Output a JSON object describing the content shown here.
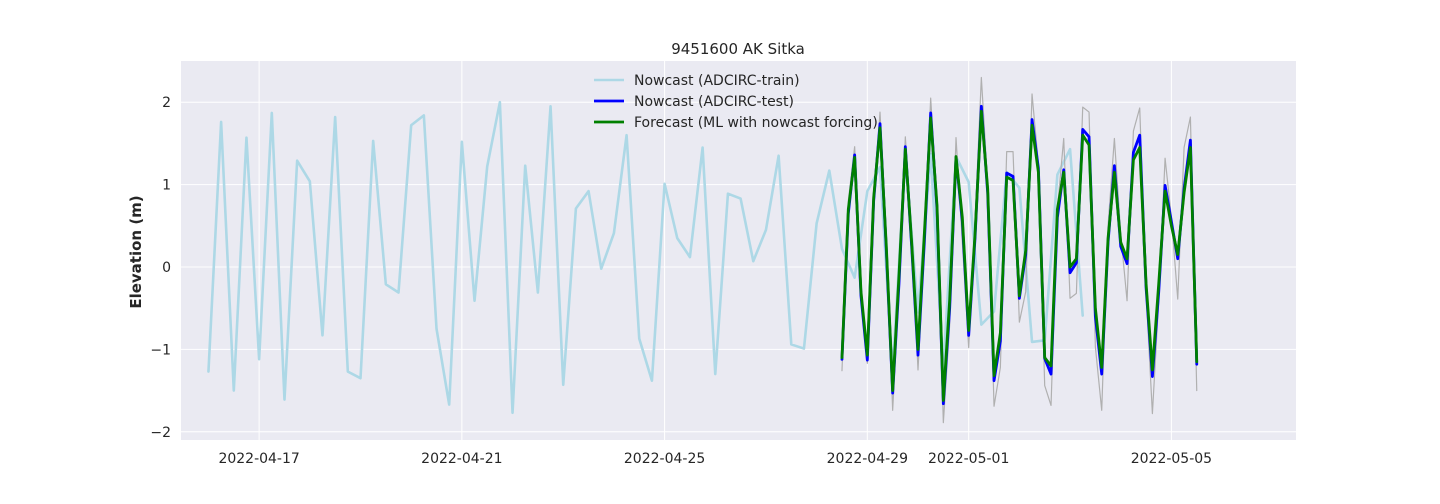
{
  "chart_data": {
    "type": "line",
    "title": "9451600 AK Sitka",
    "xlabel": "",
    "ylabel": "Elevation (m)",
    "x_type": "date",
    "xlim": [
      "2022-04-15T11:00",
      "2022-05-07T11:00"
    ],
    "ylim": [
      -2.1,
      2.5
    ],
    "x_ticks": [
      "2022-04-17",
      "2022-04-21",
      "2022-04-25",
      "2022-04-29",
      "2022-05-01",
      "2022-05-05"
    ],
    "y_ticks": [
      -2,
      -1,
      0,
      1,
      2
    ],
    "y_tick_labels": [
      "−2",
      "−1",
      "0",
      "1",
      "2"
    ],
    "grid": true,
    "legend_position": "top-center",
    "background": "#eaeaf2",
    "series": [
      {
        "name": "Nowcast (ADCIRC-train)",
        "color": "#add8e6",
        "start": "2022-04-16T00:00",
        "step_hours": 6,
        "values": [
          -1.27,
          1.76,
          -1.5,
          1.57,
          -1.12,
          1.87,
          -1.61,
          1.29,
          1.04,
          -0.83,
          1.82,
          -1.27,
          -1.35,
          1.53,
          -0.21,
          -0.31,
          1.72,
          1.84,
          -0.75,
          -1.67,
          1.52,
          -0.41,
          1.22,
          2.0,
          -1.77,
          1.23,
          -0.31,
          1.95,
          -1.43,
          0.71,
          0.92,
          -0.02,
          0.41,
          1.6,
          -0.87,
          -1.38,
          1.01,
          0.35,
          0.12,
          1.45,
          -1.3,
          0.89,
          0.83,
          0.07,
          0.45,
          1.35,
          -0.94,
          -0.99,
          0.53,
          1.17,
          0.22,
          -0.13,
          0.92,
          1.21,
          -1.27,
          1.35,
          -0.55,
          1.37,
          -1.22,
          1.34,
          1.03,
          -0.7,
          -0.54,
          1.15,
          0.96,
          -0.91,
          -0.89,
          1.12,
          1.43,
          -0.59
        ]
      },
      {
        "name": "",
        "color": "#b0b0b0",
        "start": "2022-04-28T12:00",
        "step_hours": 3,
        "values": [
          -1.26,
          0.8,
          1.46,
          -0.2,
          -1.17,
          0.68,
          1.88,
          0.4,
          -1.74,
          -0.3,
          1.58,
          0.4,
          -1.25,
          0.25,
          2.05,
          0.8,
          -1.89,
          -0.7,
          1.57,
          0.3,
          -0.98,
          0.55,
          2.3,
          1.0,
          -1.69,
          -1.22,
          1.4,
          1.4,
          -0.67,
          -0.3,
          2.1,
          1.25,
          -1.44,
          -1.68,
          0.7,
          1.56,
          -0.38,
          -0.32,
          1.94,
          1.88,
          -0.97,
          -1.74,
          0.5,
          1.56,
          0.4,
          -0.41,
          1.65,
          1.93,
          -0.31,
          -1.78,
          -0.4,
          1.32,
          0.6,
          -0.39,
          1.45,
          1.82,
          -1.5
        ]
      },
      {
        "name": "Nowcast (ADCIRC-test)",
        "color": "#0000ff",
        "start": "2022-04-28T12:00",
        "step_hours": 3,
        "values": [
          -1.12,
          0.65,
          1.36,
          -0.35,
          -1.13,
          0.8,
          1.74,
          0.2,
          -1.53,
          -0.2,
          1.46,
          0.25,
          -1.07,
          0.3,
          1.87,
          0.7,
          -1.66,
          -0.5,
          1.33,
          0.55,
          -0.83,
          0.35,
          1.95,
          0.9,
          -1.38,
          -0.9,
          1.14,
          1.1,
          -0.38,
          0.15,
          1.79,
          1.2,
          -1.11,
          -1.3,
          0.6,
          1.18,
          -0.07,
          0.05,
          1.67,
          1.58,
          -0.6,
          -1.3,
          0.3,
          1.23,
          0.25,
          0.04,
          1.39,
          1.6,
          -0.25,
          -1.33,
          -0.3,
          0.99,
          0.55,
          0.1,
          0.95,
          1.54,
          -1.18
        ]
      },
      {
        "name": "Forecast (ML with nowcast forcing)",
        "color": "#008000",
        "start": "2022-04-28T12:00",
        "step_hours": 3,
        "values": [
          -1.1,
          0.7,
          1.33,
          -0.3,
          -1.07,
          0.84,
          1.69,
          0.25,
          -1.5,
          -0.1,
          1.43,
          0.3,
          -1.0,
          0.4,
          1.81,
          0.75,
          -1.62,
          -0.4,
          1.34,
          0.6,
          -0.77,
          0.4,
          1.89,
          0.95,
          -1.32,
          -0.8,
          1.09,
          1.05,
          -0.35,
          0.2,
          1.72,
          1.15,
          -1.1,
          -1.2,
          0.7,
          1.15,
          0.0,
          0.1,
          1.6,
          1.48,
          -0.5,
          -1.22,
          0.35,
          1.15,
          0.3,
          0.1,
          1.3,
          1.45,
          -0.2,
          -1.25,
          -0.2,
          0.92,
          0.5,
          0.15,
          0.9,
          1.45,
          -1.15
        ]
      }
    ],
    "legend": [
      {
        "name": "Nowcast (ADCIRC-train)",
        "color": "#add8e6"
      },
      {
        "name": "Nowcast (ADCIRC-test)",
        "color": "#0000ff"
      },
      {
        "name": "Forecast (ML with nowcast forcing)",
        "color": "#008000"
      }
    ]
  }
}
